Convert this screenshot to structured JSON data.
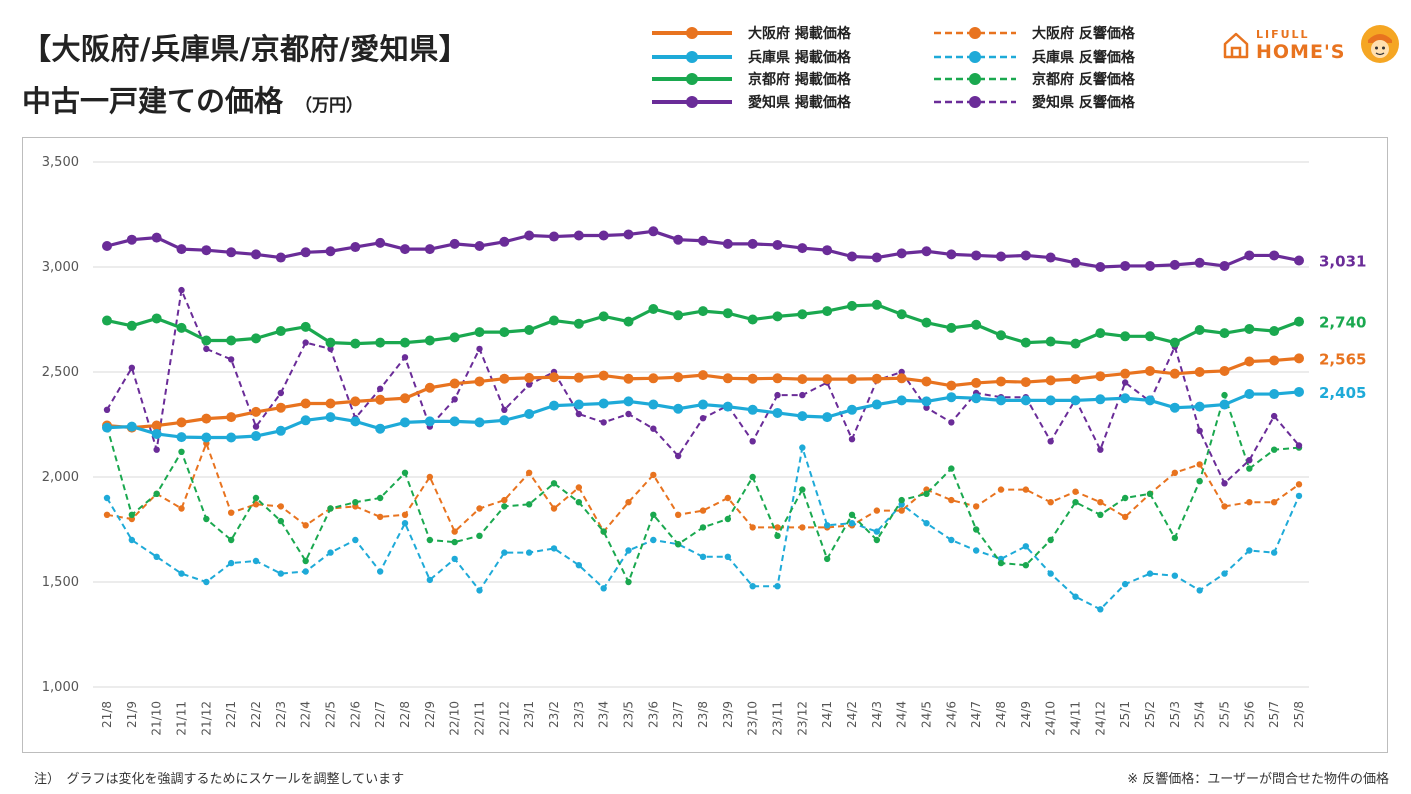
{
  "header": {
    "title_line1": "【大阪府/兵庫県/京都府/愛知県】",
    "title_line2": "中古一戸建ての価格",
    "unit": "（万円）"
  },
  "logo": {
    "small": "LIFULL",
    "big": "HOME'S"
  },
  "notes": {
    "left": "注）　グラフは変化を強調するためにスケールを調整しています",
    "right": "※ 反響価格：ユーザーが問合せた物件の価格"
  },
  "colors": {
    "osaka": "#e8731f",
    "hyogo": "#1eaad8",
    "kyoto": "#1aa84f",
    "aichi": "#6a2c98"
  },
  "chart_data": {
    "type": "line",
    "ylim": [
      1000,
      3500
    ],
    "yticks": [
      "1,000",
      "1,500",
      "2,000",
      "2,500",
      "3,000",
      "3,500"
    ],
    "grid": true,
    "legend_position": "top",
    "categories": [
      "21/8",
      "21/9",
      "21/10",
      "21/11",
      "21/12",
      "22/1",
      "22/2",
      "22/3",
      "22/4",
      "22/5",
      "22/6",
      "22/7",
      "22/8",
      "22/9",
      "22/10",
      "22/11",
      "22/12",
      "23/1",
      "23/2",
      "23/3",
      "23/4",
      "23/5",
      "23/6",
      "23/7",
      "23/8",
      "23/9",
      "23/10",
      "23/11",
      "23/12",
      "24/1",
      "24/2",
      "24/3",
      "24/4",
      "24/5",
      "24/6",
      "24/7",
      "24/8",
      "24/9",
      "24/10",
      "24/11",
      "24/12",
      "25/1",
      "25/2",
      "25/3",
      "25/4",
      "25/5",
      "25/6",
      "25/7",
      "25/8"
    ],
    "series": [
      {
        "name": "大阪府 掲載価格",
        "color": "#e8731f",
        "dashed": false,
        "end_label": "2,565",
        "values": [
          2245,
          2235,
          2245,
          2260,
          2278,
          2285,
          2310,
          2330,
          2350,
          2350,
          2360,
          2368,
          2375,
          2425,
          2445,
          2455,
          2468,
          2472,
          2475,
          2473,
          2483,
          2468,
          2470,
          2475,
          2485,
          2470,
          2468,
          2470,
          2466,
          2466,
          2466,
          2468,
          2470,
          2455,
          2435,
          2448,
          2455,
          2452,
          2460,
          2466,
          2480,
          2492,
          2505,
          2492,
          2500,
          2505,
          2550,
          2555,
          2565
        ]
      },
      {
        "name": "兵庫県 掲載価格",
        "color": "#1eaad8",
        "dashed": false,
        "end_label": "2,405",
        "values": [
          2235,
          2240,
          2205,
          2190,
          2188,
          2188,
          2195,
          2220,
          2270,
          2285,
          2265,
          2230,
          2260,
          2265,
          2265,
          2260,
          2270,
          2300,
          2340,
          2345,
          2350,
          2360,
          2345,
          2325,
          2345,
          2335,
          2320,
          2305,
          2290,
          2285,
          2320,
          2345,
          2365,
          2360,
          2380,
          2375,
          2365,
          2365,
          2365,
          2365,
          2370,
          2375,
          2365,
          2330,
          2335,
          2345,
          2395,
          2395,
          2405
        ]
      },
      {
        "name": "京都府 掲載価格",
        "color": "#1aa84f",
        "dashed": false,
        "end_label": "2,740",
        "values": [
          2745,
          2720,
          2755,
          2710,
          2650,
          2650,
          2660,
          2695,
          2715,
          2640,
          2635,
          2640,
          2640,
          2650,
          2665,
          2690,
          2690,
          2700,
          2745,
          2730,
          2765,
          2740,
          2800,
          2770,
          2790,
          2780,
          2750,
          2765,
          2775,
          2790,
          2815,
          2820,
          2775,
          2735,
          2710,
          2725,
          2675,
          2640,
          2645,
          2635,
          2685,
          2670,
          2670,
          2640,
          2700,
          2685,
          2705,
          2695,
          2740
        ]
      },
      {
        "name": "愛知県 掲載価格",
        "color": "#6a2c98",
        "dashed": false,
        "end_label": "3,031",
        "values": [
          3100,
          3130,
          3140,
          3085,
          3080,
          3070,
          3060,
          3045,
          3070,
          3075,
          3095,
          3115,
          3085,
          3085,
          3110,
          3100,
          3120,
          3150,
          3145,
          3150,
          3150,
          3155,
          3170,
          3130,
          3125,
          3110,
          3110,
          3105,
          3090,
          3080,
          3050,
          3045,
          3065,
          3075,
          3060,
          3055,
          3050,
          3055,
          3045,
          3020,
          3000,
          3005,
          3005,
          3010,
          3020,
          3005,
          3055,
          3055,
          3031
        ]
      },
      {
        "name": "大阪府 反響価格",
        "color": "#e8731f",
        "dashed": true,
        "values": [
          1820,
          1800,
          1920,
          1850,
          2160,
          1830,
          1870,
          1860,
          1770,
          1850,
          1860,
          1810,
          1820,
          2000,
          1740,
          1850,
          1890,
          2020,
          1850,
          1950,
          1740,
          1880,
          2010,
          1820,
          1840,
          1900,
          1760,
          1760,
          1760,
          1760,
          1770,
          1840,
          1840,
          1940,
          1890,
          1860,
          1940,
          1940,
          1880,
          1930,
          1880,
          1810,
          1920,
          2020,
          2060,
          1860,
          1880,
          1880,
          1965
        ]
      },
      {
        "name": "兵庫県 反響価格",
        "color": "#1eaad8",
        "dashed": true,
        "values": [
          1900,
          1700,
          1620,
          1540,
          1500,
          1590,
          1600,
          1540,
          1550,
          1640,
          1700,
          1550,
          1780,
          1510,
          1610,
          1460,
          1640,
          1640,
          1660,
          1580,
          1470,
          1650,
          1700,
          1680,
          1620,
          1620,
          1480,
          1480,
          2140,
          1770,
          1780,
          1740,
          1870,
          1780,
          1700,
          1650,
          1610,
          1670,
          1540,
          1430,
          1370,
          1490,
          1540,
          1530,
          1460,
          1540,
          1650,
          1640,
          1910
        ]
      },
      {
        "name": "京都府 反響価格",
        "color": "#1aa84f",
        "dashed": true,
        "values": [
          2240,
          1820,
          1920,
          2120,
          1800,
          1700,
          1900,
          1790,
          1600,
          1850,
          1880,
          1900,
          2020,
          1700,
          1690,
          1720,
          1860,
          1870,
          1970,
          1880,
          1740,
          1500,
          1820,
          1680,
          1760,
          1800,
          2000,
          1720,
          1940,
          1610,
          1820,
          1700,
          1890,
          1920,
          2040,
          1750,
          1590,
          1580,
          1700,
          1880,
          1820,
          1900,
          1920,
          1710,
          1980,
          2390,
          2040,
          2130,
          2140
        ]
      },
      {
        "name": "愛知県 反響価格",
        "color": "#6a2c98",
        "dashed": true,
        "values": [
          2320,
          2520,
          2130,
          2890,
          2610,
          2560,
          2240,
          2400,
          2640,
          2610,
          2280,
          2420,
          2570,
          2240,
          2370,
          2610,
          2320,
          2440,
          2500,
          2300,
          2260,
          2300,
          2230,
          2100,
          2280,
          2340,
          2170,
          2390,
          2390,
          2450,
          2180,
          2460,
          2500,
          2330,
          2260,
          2400,
          2380,
          2380,
          2170,
          2370,
          2130,
          2450,
          2360,
          2620,
          2220,
          1970,
          2080,
          2290,
          2150
        ]
      }
    ]
  }
}
